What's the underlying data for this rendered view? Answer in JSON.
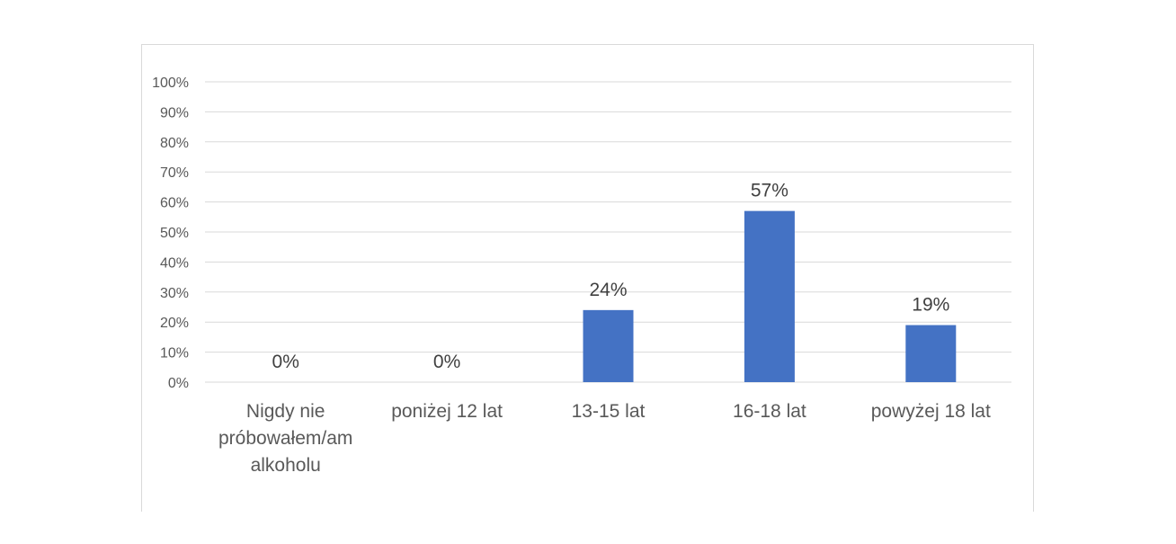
{
  "chart_data": {
    "type": "bar",
    "title": "",
    "xlabel": "",
    "ylabel": "",
    "categories": [
      [
        "Nigdy nie",
        "próbowałem/am",
        "alkoholu"
      ],
      [
        "poniżej 12 lat"
      ],
      [
        "13-15 lat"
      ],
      [
        "16-18 lat"
      ],
      [
        "powyżej 18 lat"
      ]
    ],
    "values": [
      0,
      0,
      24,
      57,
      19
    ],
    "data_labels": [
      "0%",
      "0%",
      "24%",
      "57%",
      "19%"
    ],
    "ylim": [
      0,
      100
    ],
    "y_ticks": [
      "0%",
      "10%",
      "20%",
      "30%",
      "40%",
      "50%",
      "60%",
      "70%",
      "80%",
      "90%",
      "100%"
    ],
    "grid": true,
    "legend": "none",
    "bar_color": "#4472c4",
    "grid_color": "#d9d9d9"
  }
}
